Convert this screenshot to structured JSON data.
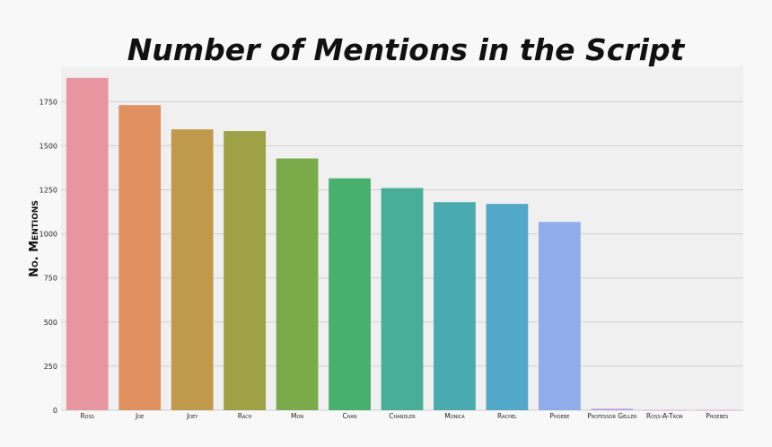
{
  "chart_data": {
    "type": "bar",
    "title": "Number of Mentions in the Script",
    "xlabel": "",
    "ylabel": "No. Mentions",
    "categories": [
      "Ross",
      "Joe",
      "Joey",
      "Rach",
      "Mon",
      "Chan",
      "Chandler",
      "Monica",
      "Rachel",
      "Phoebe",
      "Professor Geller",
      "Ross-A-Tron",
      "Phoebes"
    ],
    "values": [
      1885,
      1730,
      1593,
      1583,
      1428,
      1315,
      1260,
      1180,
      1170,
      1068,
      8,
      1,
      1
    ],
    "yticks": [
      0,
      250,
      500,
      750,
      1000,
      1250,
      1500,
      1750
    ],
    "ytick_labels": [
      "0",
      "250",
      "500",
      "750",
      "1000",
      "1250",
      "1500",
      "1750"
    ],
    "ylim": [
      0,
      1950
    ],
    "grid": true,
    "colors": [
      "#e8969f",
      "#e0915f",
      "#bf9a4a",
      "#9ea144",
      "#7aab4b",
      "#48b06f",
      "#48ae98",
      "#49aaaf",
      "#52a8c9",
      "#8fadea",
      "#b79ae8",
      "#db8fe5",
      "#e98fc6"
    ],
    "plot_background": "#f0f0f0",
    "grid_color": "#cfcfcf"
  }
}
